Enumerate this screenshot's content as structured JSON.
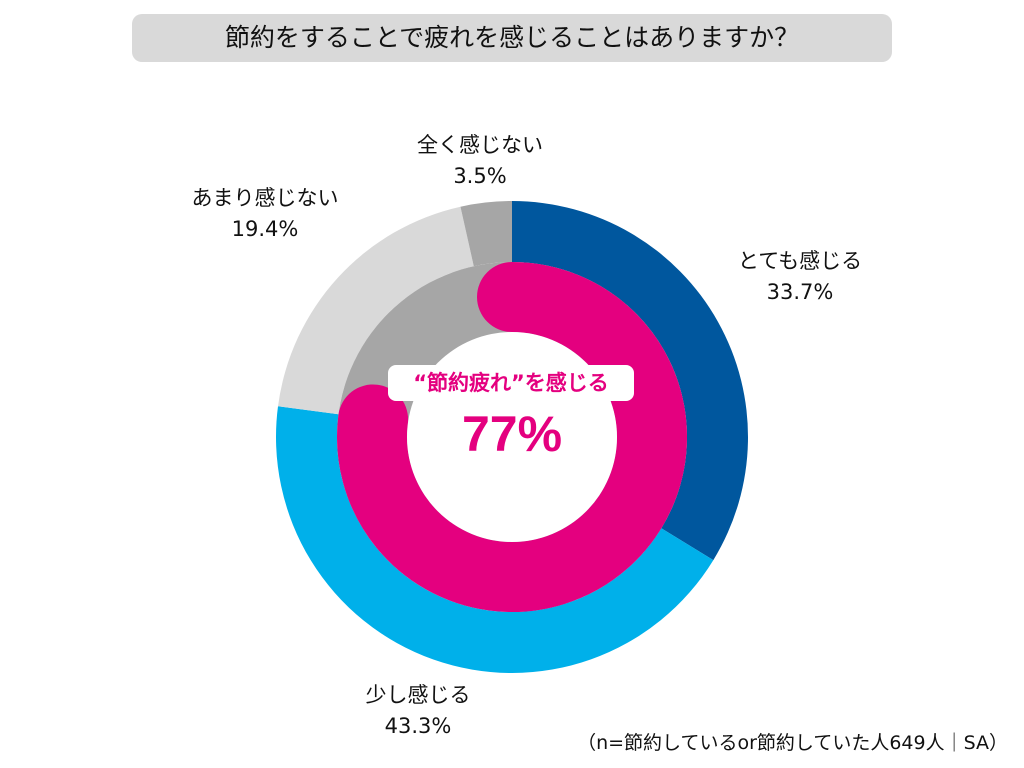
{
  "chart_data": {
    "type": "pie",
    "title": "節約をすることで疲れを感じることはありますか？",
    "slices": [
      {
        "label": "とても感じる",
        "value": 33.7,
        "value_label": "33.7%",
        "color": "#00579e"
      },
      {
        "label": "少し感じる",
        "value": 43.3,
        "value_label": "43.3%",
        "color": "#00b0ea"
      },
      {
        "label": "あまり感じない",
        "value": 19.4,
        "value_label": "19.4%",
        "color": "#d9d9d9"
      },
      {
        "label": "全く感じない",
        "value": 3.5,
        "value_label": "3.5%",
        "color": "#a6a6a6"
      }
    ],
    "inner_ring": {
      "label": "“節約疲れ”を感じる",
      "value": 77,
      "value_label": "77%",
      "color": "#e4007f",
      "track_color": "#a6a6a6"
    },
    "note": "（n=節約しているor節約していた人649人｜SA）"
  }
}
